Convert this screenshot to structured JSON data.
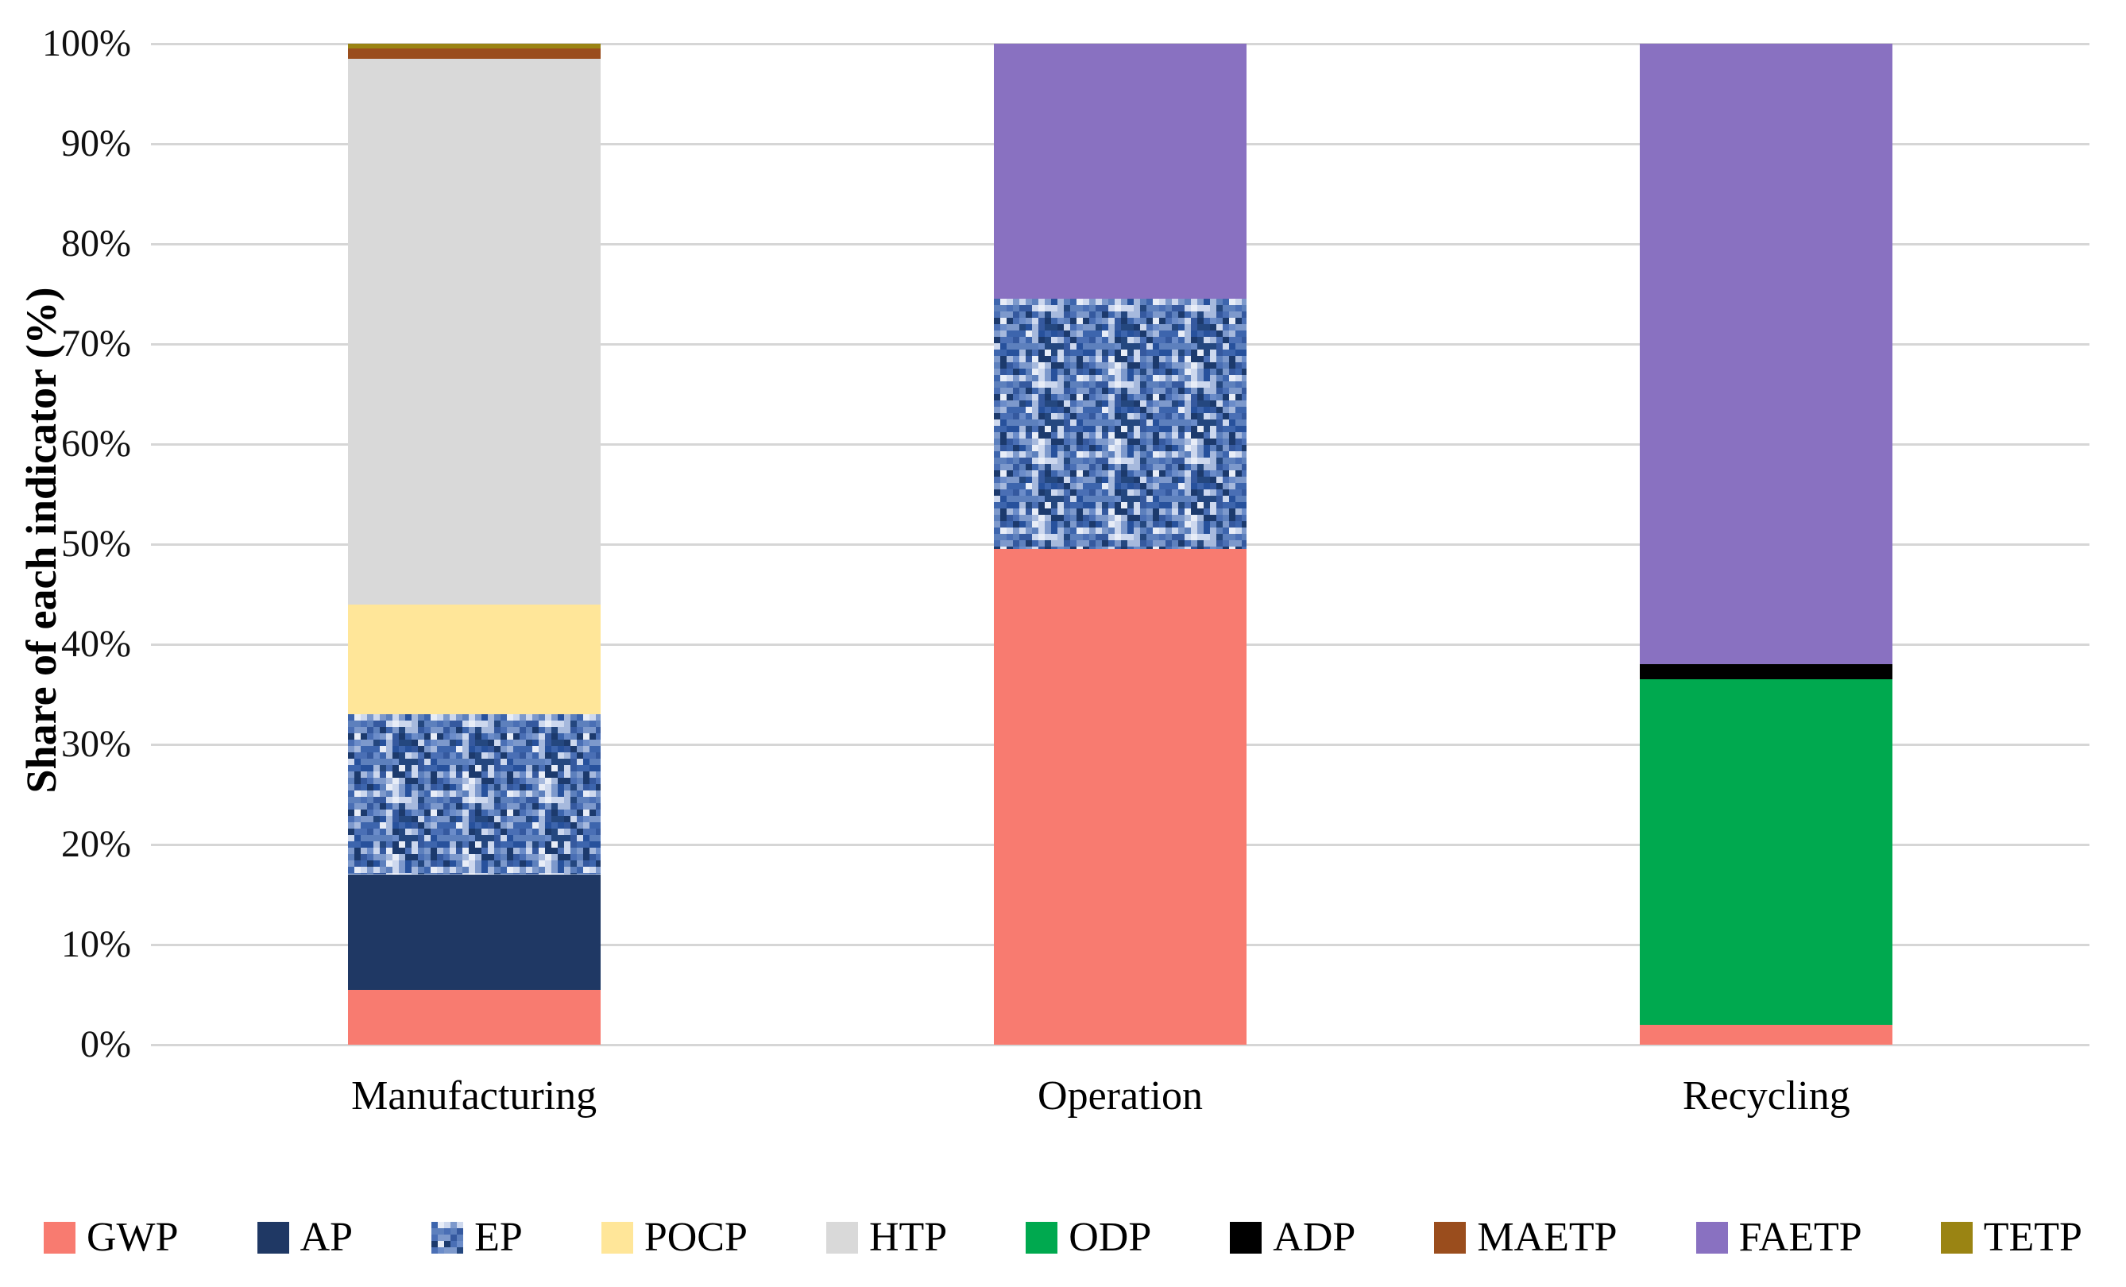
{
  "chart_data": {
    "type": "bar",
    "stacked": true,
    "title": "",
    "xlabel": "",
    "ylabel": "Share of each indicator (%)",
    "ylim": [
      0,
      100
    ],
    "ytick_step": 10,
    "ytick_suffix": "%",
    "grid": true,
    "legend_position": "bottom",
    "categories": [
      "Manufacturing",
      "Operation",
      "Recycling"
    ],
    "series": [
      {
        "name": "GWP",
        "color": "#F87B70",
        "pattern": "solid",
        "values": [
          5.5,
          49.5,
          2
        ]
      },
      {
        "name": "AP",
        "color": "#1F3864",
        "pattern": "solid",
        "values": [
          11.5,
          0,
          0
        ]
      },
      {
        "name": "EP",
        "color": "#4A6FB5",
        "pattern": "noise",
        "values": [
          16,
          25,
          0
        ]
      },
      {
        "name": "POCP",
        "color": "#FFE699",
        "pattern": "solid",
        "values": [
          11,
          0,
          0
        ]
      },
      {
        "name": "HTP",
        "color": "#D9D9D9",
        "pattern": "solid",
        "values": [
          54.5,
          0,
          0
        ]
      },
      {
        "name": "ODP",
        "color": "#00A94F",
        "pattern": "solid",
        "values": [
          0,
          0,
          34.5
        ]
      },
      {
        "name": "ADP",
        "color": "#000000",
        "pattern": "solid",
        "values": [
          0,
          0,
          1.5
        ]
      },
      {
        "name": "MAETP",
        "color": "#9A4D1D",
        "pattern": "solid",
        "values": [
          1,
          0,
          0
        ]
      },
      {
        "name": "FAETP",
        "color": "#8971C1",
        "pattern": "solid",
        "values": [
          0,
          25.5,
          62
        ]
      },
      {
        "name": "TETP",
        "color": "#9A8413",
        "pattern": "solid",
        "values": [
          0.5,
          0,
          0
        ]
      }
    ]
  }
}
